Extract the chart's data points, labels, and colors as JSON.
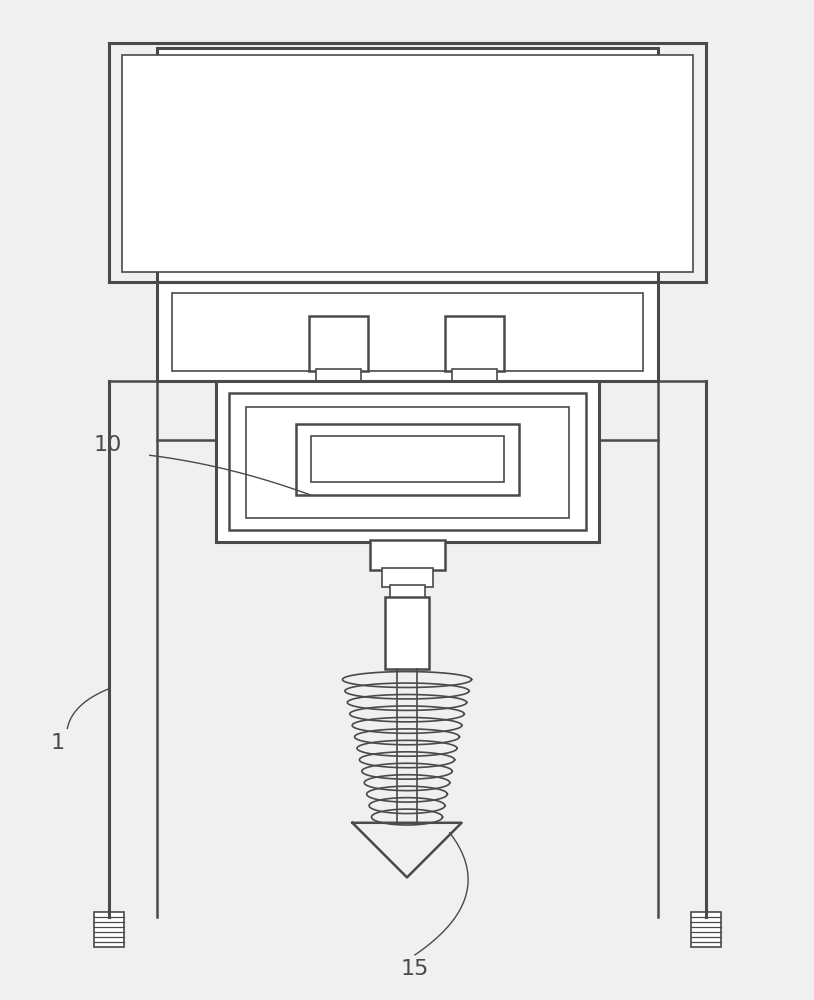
{
  "bg_color": "#f0f0f0",
  "line_color": "#4a4a4a",
  "lw_thin": 1.2,
  "lw_med": 1.8,
  "lw_thick": 2.2,
  "figsize": [
    8.14,
    10.0
  ],
  "dpi": 100,
  "label_fontsize": 16
}
